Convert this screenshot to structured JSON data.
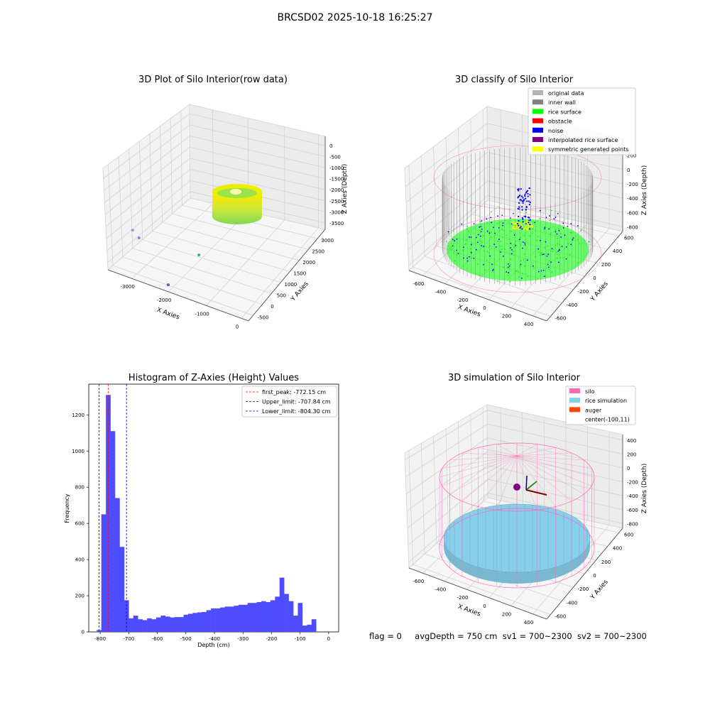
{
  "figure": {
    "suptitle": "BRCSD02 2025-10-18 16:25:27",
    "status_line": {
      "flag": "flag = 0",
      "avg_depth": "avgDepth = 750 cm",
      "sv1": "sv1 = 700~2300",
      "sv2": "sv2 = 700~2300"
    }
  },
  "colors": {
    "histogram_bar": "#4d4dff",
    "first_peak_line": "#ff0000",
    "limit_lines": "#0000cc",
    "original_data": "#b3b3b3",
    "inner_wall": "#808080",
    "rice_surface": "#00ff00",
    "obstacle": "#ff0000",
    "noise": "#0000ff",
    "interpolated_rice_surface": "#800080",
    "symmetric_generated_points": "#ffff00",
    "silo": "#ff69b4",
    "rice_simulation": "#87ceeb",
    "auger": "#ff4500"
  },
  "chart_data": [
    {
      "id": "raw",
      "type": "scatter",
      "dimensions": 3,
      "title": "3D Plot of Silo Interior(row data)",
      "xlabel": "X Axies",
      "ylabel": "Y Axies",
      "zlabel": "Z Axies (Depth)",
      "xticks": [
        "-3000",
        "-2000",
        "-1000",
        "0"
      ],
      "yticks": [
        "-500",
        "0",
        "500",
        "1000",
        "1500",
        "2000",
        "2500",
        "3000"
      ],
      "zticks": [
        "0",
        "-500",
        "-1000",
        "-1500",
        "-2000",
        "-2500",
        "-3000",
        "-3500"
      ],
      "outlier_points": [
        {
          "x": -3300,
          "y": -150,
          "z": -2500
        },
        {
          "x": -3200,
          "y": 0,
          "z": -2900
        },
        {
          "x": -1750,
          "y": 550,
          "z": -3300
        },
        {
          "x": -1900,
          "y": -700,
          "z": -3700
        }
      ]
    },
    {
      "id": "classify",
      "type": "scatter",
      "dimensions": 3,
      "title": "3D classify of Silo Interior",
      "xlabel": "X Axies",
      "ylabel": "Y Axies",
      "zlabel": "Z Axies (Depth)",
      "xticks": [
        "-600",
        "-400",
        "-200",
        "0",
        "200",
        "400"
      ],
      "yticks": [
        "-600",
        "-400",
        "-200",
        "0",
        "200",
        "400",
        "600"
      ],
      "zticks": [
        "200",
        "0",
        "-200",
        "-400",
        "-600",
        "-800"
      ],
      "legend_position": "upper right",
      "legend": [
        {
          "label": "original data",
          "color": "#b3b3b3"
        },
        {
          "label": "inner wall",
          "color": "#808080"
        },
        {
          "label": "rice surface",
          "color": "#00ff00"
        },
        {
          "label": "obstacle",
          "color": "#ff0000"
        },
        {
          "label": "noise",
          "color": "#0000ff"
        },
        {
          "label": "interpolated rice surface",
          "color": "#800080"
        },
        {
          "label": "symmetric generated points",
          "color": "#ffff00"
        }
      ]
    },
    {
      "id": "histogram",
      "type": "bar",
      "title": "Histogram of Z-Axies (Height) Values",
      "xlabel": "Depth (cm)",
      "ylabel": "Frequency",
      "xlim": [
        -840,
        35
      ],
      "ylim": [
        0,
        1370
      ],
      "xticks": [
        -800,
        -700,
        -600,
        -500,
        -400,
        -300,
        -200,
        -100,
        0
      ],
      "yticks": [
        0,
        200,
        400,
        600,
        800,
        1000,
        1200
      ],
      "bin_start": -812,
      "bin_width": 16,
      "values": [
        10,
        650,
        1310,
        1110,
        740,
        470,
        175,
        75,
        90,
        70,
        65,
        75,
        70,
        80,
        90,
        85,
        80,
        82,
        82,
        95,
        100,
        105,
        108,
        110,
        120,
        130,
        130,
        135,
        140,
        140,
        145,
        150,
        150,
        160,
        160,
        165,
        170,
        165,
        175,
        195,
        300,
        210,
        170,
        90,
        160,
        35,
        40,
        70
      ],
      "vlines": [
        {
          "label": "first_peak: -772.15 cm",
          "x": -772.15,
          "color": "#ff0000"
        },
        {
          "label": "Upper_limit: -707.84 cm",
          "x": -707.84,
          "color": "#0000cc"
        },
        {
          "label": "Lower_limit: -804.30 cm",
          "x": -804.3,
          "color": "#0000cc"
        }
      ],
      "legend_position": "upper right"
    },
    {
      "id": "simulation",
      "type": "surface",
      "dimensions": 3,
      "title": "3D simulation of Silo Interior",
      "xlabel": "X Axies",
      "ylabel": "Y Axies",
      "zlabel": "Z Axies (Depth)",
      "xticks": [
        "-600",
        "-400",
        "-200",
        "0",
        "200",
        "400"
      ],
      "yticks": [
        "-600",
        "-400",
        "-200",
        "0",
        "200",
        "400",
        "600"
      ],
      "zticks": [
        "400",
        "200",
        "0",
        "-200",
        "-400",
        "-600",
        "-800"
      ],
      "legend_position": "upper right",
      "legend": [
        {
          "label": "silo",
          "color": "#ff69b4"
        },
        {
          "label": "rice simulation",
          "color": "#87ceeb"
        },
        {
          "label": "auger",
          "color": "#ff4500"
        },
        {
          "label": "center(-100,11)",
          "color": ""
        }
      ]
    }
  ]
}
